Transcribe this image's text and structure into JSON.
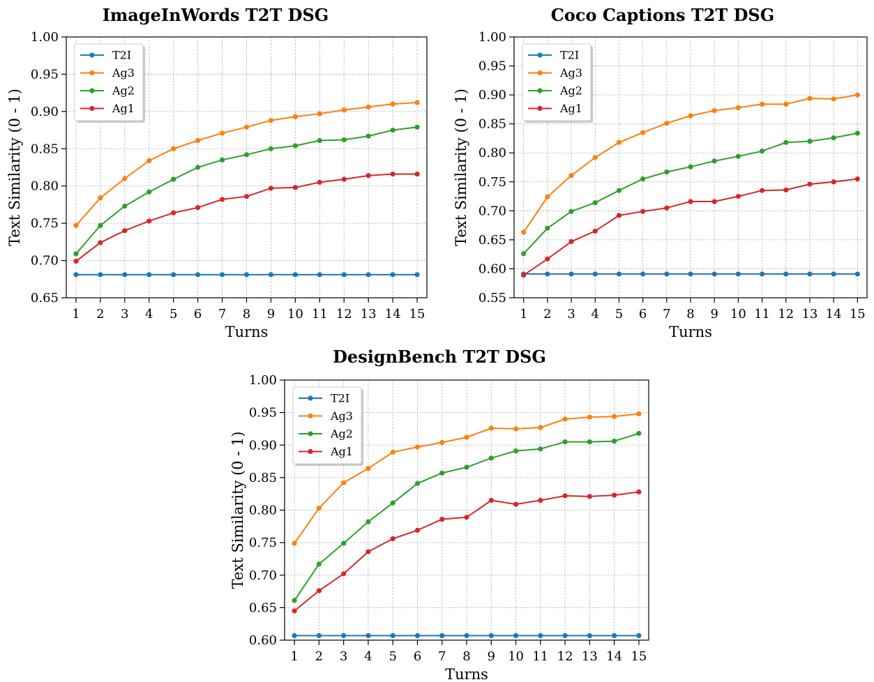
{
  "chart_data": [
    {
      "type": "line",
      "title": "ImageInWords T2T DSG",
      "xlabel": "Turns",
      "ylabel": "Text Similarity (0 - 1)",
      "x": [
        1,
        2,
        3,
        4,
        5,
        6,
        7,
        8,
        9,
        10,
        11,
        12,
        13,
        14,
        15
      ],
      "xlim": [
        0.6,
        15.4
      ],
      "ylim": [
        0.65,
        1.0
      ],
      "yticks": [
        "0.65",
        "0.70",
        "0.75",
        "0.80",
        "0.85",
        "0.90",
        "0.95",
        "1.00"
      ],
      "grid": true,
      "legend_position": "top-left",
      "series": [
        {
          "name": "T2I",
          "color": "#1f77b4",
          "values": [
            0.681,
            0.681,
            0.681,
            0.681,
            0.681,
            0.681,
            0.681,
            0.681,
            0.681,
            0.681,
            0.681,
            0.681,
            0.681,
            0.681,
            0.681
          ]
        },
        {
          "name": "Ag3",
          "color": "#ff7f0e",
          "values": [
            0.747,
            0.784,
            0.81,
            0.834,
            0.85,
            0.861,
            0.871,
            0.879,
            0.888,
            0.893,
            0.897,
            0.902,
            0.906,
            0.91,
            0.912
          ]
        },
        {
          "name": "Ag2",
          "color": "#2ca02c",
          "values": [
            0.709,
            0.747,
            0.773,
            0.792,
            0.809,
            0.825,
            0.835,
            0.842,
            0.85,
            0.854,
            0.861,
            0.862,
            0.867,
            0.875,
            0.879
          ]
        },
        {
          "name": "Ag1",
          "color": "#d62728",
          "values": [
            0.699,
            0.724,
            0.74,
            0.753,
            0.764,
            0.771,
            0.782,
            0.786,
            0.797,
            0.798,
            0.805,
            0.809,
            0.814,
            0.816,
            0.816
          ]
        }
      ]
    },
    {
      "type": "line",
      "title": "Coco Captions T2T DSG",
      "xlabel": "Turns",
      "ylabel": "Text Similarity (0 - 1)",
      "x": [
        1,
        2,
        3,
        4,
        5,
        6,
        7,
        8,
        9,
        10,
        11,
        12,
        13,
        14,
        15
      ],
      "xlim": [
        0.6,
        15.4
      ],
      "ylim": [
        0.55,
        1.0
      ],
      "yticks": [
        "0.55",
        "0.60",
        "0.65",
        "0.70",
        "0.75",
        "0.80",
        "0.85",
        "0.90",
        "0.95",
        "1.00"
      ],
      "grid": true,
      "legend_position": "top-left",
      "series": [
        {
          "name": "T2I",
          "color": "#1f77b4",
          "values": [
            0.591,
            0.591,
            0.591,
            0.591,
            0.591,
            0.591,
            0.591,
            0.591,
            0.591,
            0.591,
            0.591,
            0.591,
            0.591,
            0.591,
            0.591
          ]
        },
        {
          "name": "Ag3",
          "color": "#ff7f0e",
          "values": [
            0.663,
            0.724,
            0.761,
            0.792,
            0.818,
            0.835,
            0.851,
            0.864,
            0.873,
            0.878,
            0.884,
            0.884,
            0.894,
            0.893,
            0.9
          ]
        },
        {
          "name": "Ag2",
          "color": "#2ca02c",
          "values": [
            0.626,
            0.67,
            0.699,
            0.714,
            0.735,
            0.755,
            0.767,
            0.776,
            0.786,
            0.794,
            0.803,
            0.818,
            0.82,
            0.826,
            0.834
          ]
        },
        {
          "name": "Ag1",
          "color": "#d62728",
          "values": [
            0.589,
            0.617,
            0.647,
            0.665,
            0.692,
            0.699,
            0.705,
            0.716,
            0.716,
            0.725,
            0.735,
            0.736,
            0.746,
            0.75,
            0.755
          ]
        }
      ]
    },
    {
      "type": "line",
      "title": "DesignBench T2T DSG",
      "xlabel": "Turns",
      "ylabel": "Text Similarity (0 - 1)",
      "x": [
        1,
        2,
        3,
        4,
        5,
        6,
        7,
        8,
        9,
        10,
        11,
        12,
        13,
        14,
        15
      ],
      "xlim": [
        0.6,
        15.4
      ],
      "ylim": [
        0.6,
        1.0
      ],
      "yticks": [
        "0.60",
        "0.65",
        "0.70",
        "0.75",
        "0.80",
        "0.85",
        "0.90",
        "0.95",
        "1.00"
      ],
      "grid": true,
      "legend_position": "top-left",
      "series": [
        {
          "name": "T2I",
          "color": "#1f77b4",
          "values": [
            0.607,
            0.607,
            0.607,
            0.607,
            0.607,
            0.607,
            0.607,
            0.607,
            0.607,
            0.607,
            0.607,
            0.607,
            0.607,
            0.607,
            0.607
          ]
        },
        {
          "name": "Ag3",
          "color": "#ff7f0e",
          "values": [
            0.749,
            0.803,
            0.842,
            0.864,
            0.889,
            0.897,
            0.904,
            0.912,
            0.926,
            0.925,
            0.927,
            0.94,
            0.943,
            0.944,
            0.948
          ]
        },
        {
          "name": "Ag2",
          "color": "#2ca02c",
          "values": [
            0.661,
            0.717,
            0.749,
            0.782,
            0.811,
            0.841,
            0.857,
            0.866,
            0.88,
            0.891,
            0.894,
            0.905,
            0.905,
            0.906,
            0.918
          ]
        },
        {
          "name": "Ag1",
          "color": "#d62728",
          "values": [
            0.645,
            0.676,
            0.702,
            0.736,
            0.756,
            0.769,
            0.786,
            0.789,
            0.815,
            0.809,
            0.815,
            0.822,
            0.821,
            0.823,
            0.828
          ]
        }
      ]
    }
  ]
}
